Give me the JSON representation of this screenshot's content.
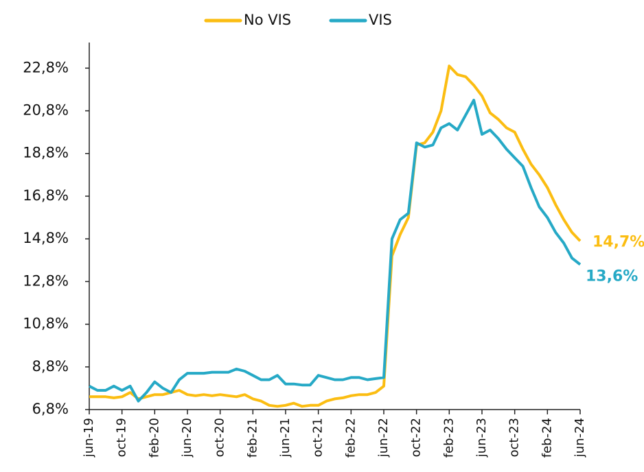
{
  "chart_data": {
    "type": "line",
    "categories": [
      "jun-19",
      null,
      null,
      null,
      "oct-19",
      null,
      null,
      null,
      "feb-20",
      null,
      null,
      null,
      "jun-20",
      null,
      null,
      null,
      "oct-20",
      null,
      null,
      null,
      "feb-21",
      null,
      null,
      null,
      "jun-21",
      null,
      null,
      null,
      "oct-21",
      null,
      null,
      null,
      "feb-22",
      null,
      null,
      null,
      "jun-22",
      null,
      null,
      null,
      "oct-22",
      null,
      null,
      null,
      "feb-23",
      null,
      null,
      null,
      "jun-23",
      null,
      null,
      null,
      "oct-23",
      null,
      null,
      null,
      "feb-24",
      null,
      null,
      null,
      "jun-24"
    ],
    "series": [
      {
        "name": "No VIS",
        "color": "#fbbd12",
        "values": [
          7.4,
          7.4,
          7.4,
          7.35,
          7.4,
          7.6,
          7.3,
          7.4,
          7.5,
          7.5,
          7.6,
          7.7,
          7.5,
          7.45,
          7.5,
          7.45,
          7.5,
          7.45,
          7.4,
          7.5,
          7.3,
          7.2,
          7.0,
          6.95,
          7.0,
          7.1,
          6.95,
          7.0,
          7.0,
          7.2,
          7.3,
          7.35,
          7.45,
          7.5,
          7.5,
          7.6,
          7.9,
          14.0,
          15.0,
          15.8,
          19.2,
          19.3,
          19.8,
          20.8,
          22.9,
          22.5,
          22.4,
          22.0,
          21.5,
          20.7,
          20.4,
          20.0,
          19.8,
          19.0,
          18.3,
          17.8,
          17.2,
          16.4,
          15.7,
          15.1,
          14.7
        ],
        "value_labels": [
          null,
          null,
          null,
          null,
          null,
          null,
          null,
          null,
          null,
          null,
          null,
          null,
          null,
          null,
          null,
          null,
          null,
          null,
          null,
          null,
          null,
          null,
          null,
          null,
          null,
          null,
          null,
          null,
          null,
          null,
          null,
          null,
          null,
          null,
          null,
          null,
          null,
          null,
          null,
          null,
          null,
          null,
          null,
          null,
          null,
          null,
          null,
          null,
          null,
          null,
          null,
          null,
          null,
          null,
          null,
          null,
          null,
          null,
          null,
          null,
          "14,7%"
        ]
      },
      {
        "name": "VIS",
        "color": "#26a9c6",
        "values": [
          7.9,
          7.7,
          7.7,
          7.9,
          7.7,
          7.9,
          7.2,
          7.6,
          8.1,
          7.8,
          7.6,
          8.2,
          8.5,
          8.5,
          8.5,
          8.55,
          8.55,
          8.55,
          8.7,
          8.6,
          8.4,
          8.2,
          8.2,
          8.4,
          8.0,
          8.0,
          7.95,
          7.95,
          8.4,
          8.3,
          8.2,
          8.2,
          8.3,
          8.3,
          8.2,
          8.25,
          8.3,
          14.8,
          15.7,
          16.0,
          19.3,
          19.1,
          19.2,
          20.0,
          20.2,
          19.9,
          20.6,
          21.3,
          19.7,
          19.9,
          19.5,
          19.0,
          18.6,
          18.2,
          17.2,
          16.3,
          15.8,
          15.1,
          14.6,
          13.9,
          13.6
        ],
        "value_labels": [
          null,
          null,
          null,
          null,
          null,
          null,
          null,
          null,
          null,
          null,
          null,
          null,
          null,
          null,
          null,
          null,
          null,
          null,
          null,
          null,
          null,
          null,
          null,
          null,
          null,
          null,
          null,
          null,
          null,
          null,
          null,
          null,
          null,
          null,
          null,
          null,
          null,
          null,
          null,
          null,
          null,
          null,
          null,
          null,
          null,
          null,
          null,
          null,
          null,
          null,
          null,
          null,
          null,
          null,
          null,
          null,
          null,
          null,
          null,
          null,
          "13,6%"
        ]
      }
    ],
    "ylim": [
      6.8,
      24
    ],
    "yticks": [
      {
        "value": 6.8,
        "label": "6,8%"
      },
      {
        "value": 8.8,
        "label": "8,8%"
      },
      {
        "value": 10.8,
        "label": "10,8%"
      },
      {
        "value": 12.8,
        "label": "12,8%"
      },
      {
        "value": 14.8,
        "label": "14,8%"
      },
      {
        "value": 16.8,
        "label": "16,8%"
      },
      {
        "value": 18.8,
        "label": "18,8%"
      },
      {
        "value": 20.8,
        "label": "20,8%"
      },
      {
        "value": 22.8,
        "label": "22,8%"
      }
    ],
    "legend": "top"
  }
}
